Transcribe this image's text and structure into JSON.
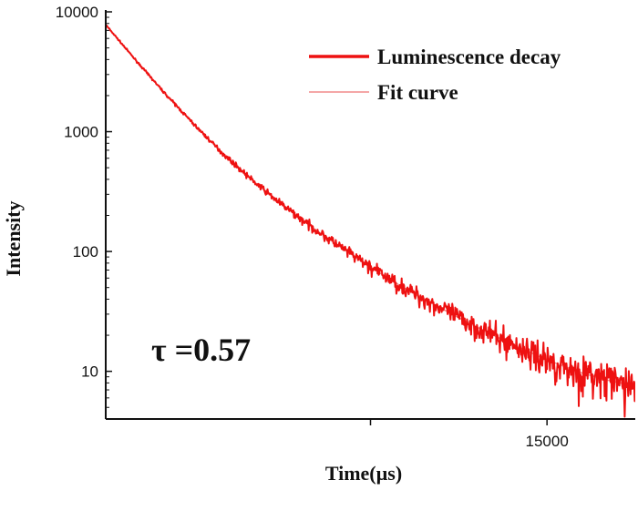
{
  "chart_data": {
    "type": "line",
    "title": "",
    "xlabel": "Time(µs)",
    "ylabel": "Intensity",
    "yscale": "log",
    "xlim": [
      0,
      18000
    ],
    "ylim": [
      4,
      10000
    ],
    "x_ticks": [
      {
        "value": 9000,
        "label": ""
      },
      {
        "value": 15000,
        "label": "15000"
      }
    ],
    "y_ticks": [
      {
        "value": 10,
        "label": "10"
      },
      {
        "value": 100,
        "label": "100"
      },
      {
        "value": 1000,
        "label": "1000"
      },
      {
        "value": 10000,
        "label": "10000"
      }
    ],
    "annotation": "τ =0.57",
    "series": [
      {
        "name": "Luminescence decay",
        "color": "#ee1111",
        "x": [
          0,
          1000,
          2000,
          3000,
          4000,
          5000,
          6000,
          7000,
          8000,
          9000,
          10000,
          11000,
          12000,
          13000,
          14000,
          15000,
          16000,
          17000,
          18000
        ],
        "y": [
          7800,
          4000,
          2100,
          1150,
          650,
          390,
          245,
          160,
          108,
          74,
          52,
          38,
          28,
          21,
          16,
          12.5,
          10,
          8.5,
          7.5
        ]
      },
      {
        "name": "Fit curve",
        "color": "#f08a8a",
        "x": [
          0,
          1000,
          2000,
          3000,
          4000,
          5000,
          6000,
          7000,
          8000,
          9000,
          10000,
          11000,
          12000,
          13000,
          14000,
          15000,
          16000,
          17000,
          18000
        ],
        "y": [
          7800,
          4000,
          2100,
          1150,
          650,
          390,
          245,
          160,
          108,
          74,
          52,
          38,
          28,
          21,
          16,
          12.5,
          10,
          8.5,
          7.5
        ]
      }
    ]
  }
}
